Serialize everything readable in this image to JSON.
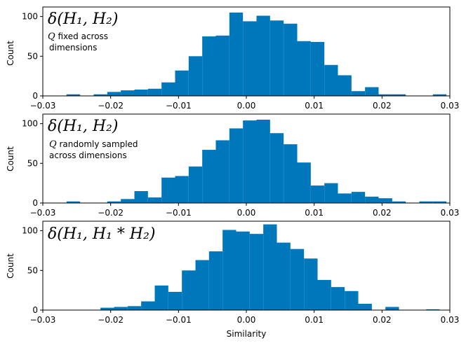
{
  "chart_data": {
    "type": "histogram",
    "bar_color": "#0077bb",
    "x_range": [
      -0.03,
      0.03
    ],
    "bin_width": 0.002,
    "x_ticks": [
      -0.03,
      -0.02,
      -0.01,
      0.0,
      0.01,
      0.02,
      0.03
    ],
    "x_tick_labels": [
      "−0.03",
      "−0.02",
      "−0.01",
      "0.00",
      "0.01",
      "0.02",
      "0.03"
    ],
    "xlabel": "Similarity",
    "panels": [
      {
        "ylabel": "Count",
        "ylim": [
          0,
          112
        ],
        "y_ticks": [
          0,
          50,
          100
        ],
        "y_tick_labels": [
          "0",
          "50",
          "100"
        ],
        "annotation_math": "δ(H₁, H₂)",
        "annotation_q": "Q",
        "annotation_line1": " fixed across",
        "annotation_line2": "dimensions",
        "bins": [
          {
            "x0": -0.0265,
            "count": 2
          },
          {
            "x0": -0.0225,
            "count": 2
          },
          {
            "x0": -0.0205,
            "count": 5
          },
          {
            "x0": -0.0185,
            "count": 7
          },
          {
            "x0": -0.0165,
            "count": 8
          },
          {
            "x0": -0.0145,
            "count": 9
          },
          {
            "x0": -0.0125,
            "count": 17
          },
          {
            "x0": -0.0105,
            "count": 32
          },
          {
            "x0": -0.0085,
            "count": 50
          },
          {
            "x0": -0.0065,
            "count": 75
          },
          {
            "x0": -0.0045,
            "count": 76
          },
          {
            "x0": -0.0025,
            "count": 105
          },
          {
            "x0": -0.0005,
            "count": 94
          },
          {
            "x0": 0.0015,
            "count": 101
          },
          {
            "x0": 0.0035,
            "count": 95
          },
          {
            "x0": 0.0055,
            "count": 91
          },
          {
            "x0": 0.0075,
            "count": 69
          },
          {
            "x0": 0.0095,
            "count": 68
          },
          {
            "x0": 0.0115,
            "count": 39
          },
          {
            "x0": 0.0135,
            "count": 26
          },
          {
            "x0": 0.0155,
            "count": 6
          },
          {
            "x0": 0.0175,
            "count": 11
          },
          {
            "x0": 0.0195,
            "count": 2
          },
          {
            "x0": 0.0215,
            "count": 2
          },
          {
            "x0": 0.0275,
            "count": 2
          }
        ]
      },
      {
        "ylabel": "Count",
        "ylim": [
          0,
          112
        ],
        "y_ticks": [
          0,
          50,
          100
        ],
        "y_tick_labels": [
          "0",
          "50",
          "100"
        ],
        "annotation_math": "δ(H₁, H₂)",
        "annotation_q": "Q",
        "annotation_line1": " randomly sampled",
        "annotation_line2": "across dimensions",
        "bins": [
          {
            "x0": -0.0265,
            "count": 2
          },
          {
            "x0": -0.0205,
            "count": 2
          },
          {
            "x0": -0.0185,
            "count": 5
          },
          {
            "x0": -0.0165,
            "count": 15
          },
          {
            "x0": -0.0145,
            "count": 7
          },
          {
            "x0": -0.0125,
            "count": 32
          },
          {
            "x0": -0.0105,
            "count": 34
          },
          {
            "x0": -0.0085,
            "count": 46
          },
          {
            "x0": -0.0065,
            "count": 67
          },
          {
            "x0": -0.0045,
            "count": 79
          },
          {
            "x0": -0.0025,
            "count": 94
          },
          {
            "x0": -0.0005,
            "count": 104
          },
          {
            "x0": 0.0015,
            "count": 105
          },
          {
            "x0": 0.0035,
            "count": 88
          },
          {
            "x0": 0.0055,
            "count": 74
          },
          {
            "x0": 0.0075,
            "count": 51
          },
          {
            "x0": 0.0095,
            "count": 22
          },
          {
            "x0": 0.0115,
            "count": 25
          },
          {
            "x0": 0.0135,
            "count": 12
          },
          {
            "x0": 0.0155,
            "count": 14
          },
          {
            "x0": 0.0175,
            "count": 8
          },
          {
            "x0": 0.0195,
            "count": 6
          },
          {
            "x0": 0.0215,
            "count": 2
          },
          {
            "x0": 0.0255,
            "count": 2
          },
          {
            "x0": 0.0275,
            "count": 2
          }
        ]
      },
      {
        "ylabel": "Count",
        "ylim": [
          0,
          112
        ],
        "y_ticks": [
          0,
          50,
          100
        ],
        "y_tick_labels": [
          "0",
          "50",
          "100"
        ],
        "annotation_math": "δ(H₁, H₁ * H₂)",
        "annotation_q": "",
        "annotation_line1": "",
        "annotation_line2": "",
        "bins": [
          {
            "x0": -0.0215,
            "count": 3
          },
          {
            "x0": -0.0195,
            "count": 4
          },
          {
            "x0": -0.0175,
            "count": 5
          },
          {
            "x0": -0.0155,
            "count": 11
          },
          {
            "x0": -0.0135,
            "count": 31
          },
          {
            "x0": -0.0115,
            "count": 23
          },
          {
            "x0": -0.0095,
            "count": 50
          },
          {
            "x0": -0.0075,
            "count": 63
          },
          {
            "x0": -0.0055,
            "count": 74
          },
          {
            "x0": -0.0035,
            "count": 101
          },
          {
            "x0": -0.0015,
            "count": 99
          },
          {
            "x0": 0.0005,
            "count": 96
          },
          {
            "x0": 0.0025,
            "count": 108
          },
          {
            "x0": 0.0045,
            "count": 85
          },
          {
            "x0": 0.0065,
            "count": 77
          },
          {
            "x0": 0.0085,
            "count": 65
          },
          {
            "x0": 0.0105,
            "count": 38
          },
          {
            "x0": 0.0125,
            "count": 29
          },
          {
            "x0": 0.0145,
            "count": 24
          },
          {
            "x0": 0.0165,
            "count": 8
          },
          {
            "x0": 0.0205,
            "count": 4
          },
          {
            "x0": 0.0265,
            "count": 1
          }
        ]
      }
    ]
  }
}
